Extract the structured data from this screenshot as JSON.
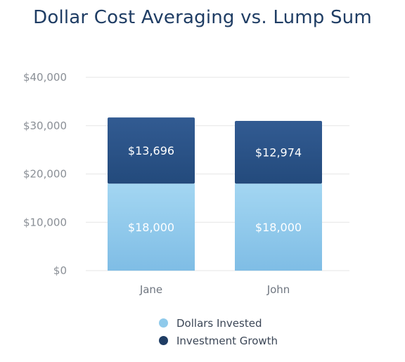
{
  "chart_data": {
    "type": "bar",
    "stacked": true,
    "title": "Dollar Cost Averaging vs. Lump Sum",
    "categories": [
      "Jane",
      "John"
    ],
    "series": [
      {
        "name": "Dollars Invested",
        "values": [
          18000,
          18000
        ],
        "labels": [
          "$18,000",
          "$18,000"
        ],
        "color": "#8fcaeb"
      },
      {
        "name": "Investment Growth",
        "values": [
          13696,
          12974
        ],
        "labels": [
          "$13,696",
          "$12,974"
        ],
        "color": "#2b5287"
      }
    ],
    "ylim": [
      0,
      40000
    ],
    "yticks": [
      0,
      10000,
      20000,
      30000,
      40000
    ],
    "ytick_labels": [
      "$0",
      "$10,000",
      "$20,000",
      "$30,000",
      "$40,000"
    ],
    "grid": true,
    "legend": "bottom-center"
  }
}
